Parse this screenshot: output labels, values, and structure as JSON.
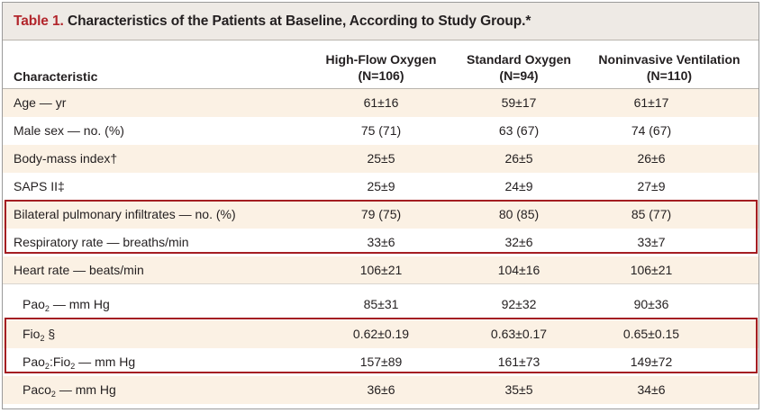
{
  "table": {
    "title_number": "Table 1.",
    "title_text": " Characteristics of the Patients at Baseline, According to Study Group.*",
    "char_header": "Characteristic",
    "columns": [
      {
        "name": "High-Flow Oxygen",
        "n": "(N=106)"
      },
      {
        "name": "Standard Oxygen",
        "n": "(N=94)"
      },
      {
        "name": "Noninvasive Ventilation",
        "n": "(N=110)"
      }
    ],
    "rows": [
      {
        "label": "Age — yr",
        "values": [
          "61±16",
          "59±17",
          "61±17"
        ]
      },
      {
        "label": "Male sex — no. (%)",
        "values": [
          "75 (71)",
          "63 (67)",
          "74 (67)"
        ]
      },
      {
        "label": "Body-mass index†",
        "values": [
          "25±5",
          "26±5",
          "26±6"
        ]
      },
      {
        "label": "SAPS II‡",
        "values": [
          "25±9",
          "24±9",
          "27±9"
        ]
      },
      {
        "label": "Bilateral pulmonary infiltrates — no. (%)",
        "values": [
          "79 (75)",
          "80 (85)",
          "85 (77)"
        ]
      },
      {
        "label": "Respiratory rate — breaths/min",
        "values": [
          "33±6",
          "32±6",
          "33±7"
        ]
      },
      {
        "label": "Heart rate — beats/min",
        "values": [
          "106±21",
          "104±16",
          "106±21"
        ]
      },
      {
        "label_pre": "Pao",
        "label_sub": "2",
        "label_post": " — mm Hg",
        "values": [
          "85±31",
          "92±32",
          "90±36"
        ]
      },
      {
        "label_pre": "Fio",
        "label_sub": "2",
        "label_post": " §",
        "values": [
          "0.62±0.19",
          "0.63±0.17",
          "0.65±0.15"
        ]
      },
      {
        "label_pre": "Pao",
        "label_sub": "2",
        "label_mid": ":Fio",
        "label_sub2": "2",
        "label_post": " — mm Hg",
        "values": [
          "157±89",
          "161±73",
          "149±72"
        ]
      },
      {
        "label_pre": "Paco",
        "label_sub": "2",
        "label_post": " — mm Hg",
        "values": [
          "36±6",
          "35±5",
          "34±6"
        ]
      }
    ]
  },
  "colors": {
    "title_number": "#b2262c",
    "highlight_border": "#a41e22",
    "row_shade": "#fbf1e4",
    "title_bg": "#eeeae5"
  }
}
